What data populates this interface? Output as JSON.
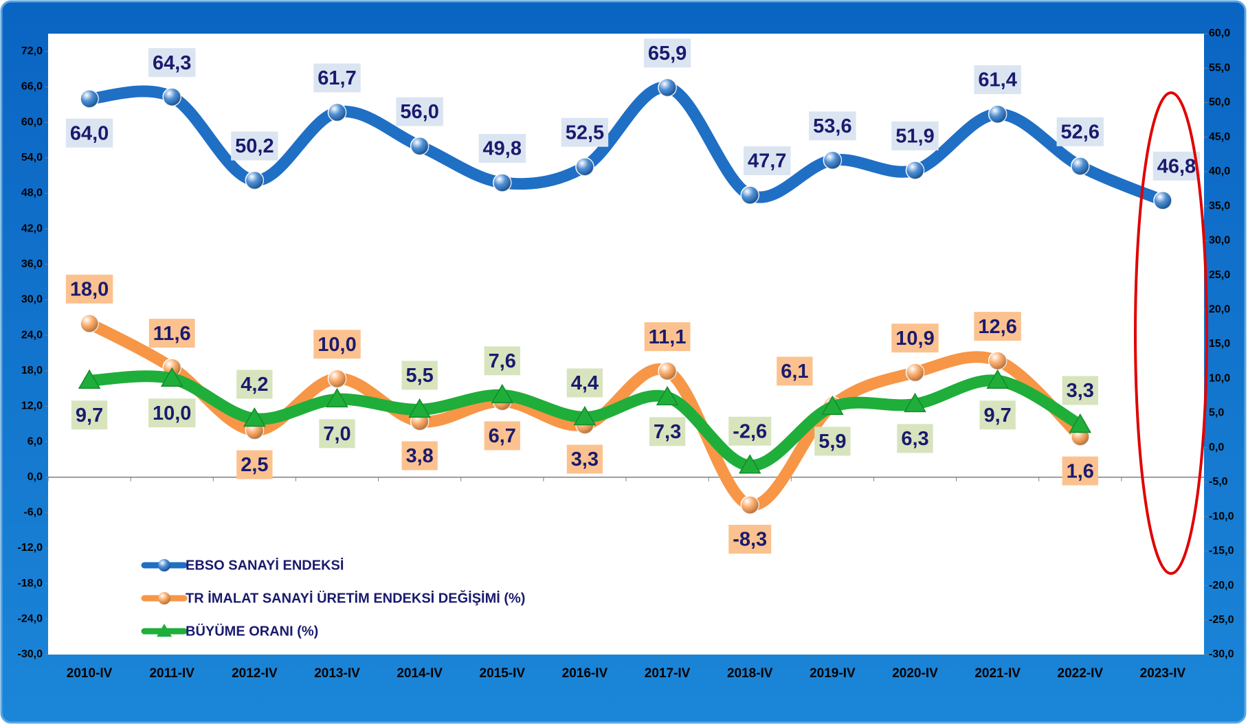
{
  "chart_data": {
    "type": "line",
    "categories": [
      "2010-IV",
      "2011-IV",
      "2012-IV",
      "2013-IV",
      "2014-IV",
      "2015-IV",
      "2016-IV",
      "2017-IV",
      "2018-IV",
      "2019-IV",
      "2020-IV",
      "2021-IV",
      "2022-IV",
      "2023-IV"
    ],
    "series": [
      {
        "name": "EBSO SANAYİ ENDEKSİ",
        "color": "#1f6fc5",
        "marker": "circle",
        "values": [
          64.0,
          64.3,
          50.2,
          61.7,
          56.0,
          49.8,
          52.5,
          65.9,
          47.7,
          53.6,
          51.9,
          61.4,
          52.6,
          46.8
        ],
        "value_labels": [
          "64,0",
          "64,3",
          "50,2",
          "61,7",
          "56,0",
          "49,8",
          "52,5",
          "65,9",
          "47,7",
          "53,6",
          "51,9",
          "61,4",
          "52,6",
          "46,8"
        ]
      },
      {
        "name": "TR İMALAT SANAYİ ÜRETİM ENDEKSİ DEĞİŞİMİ (%)",
        "color": "#f79646",
        "marker": "circle",
        "axis": "y2",
        "values": [
          18.0,
          11.6,
          2.5,
          10.0,
          3.8,
          6.7,
          3.3,
          11.1,
          -8.3,
          6.1,
          10.9,
          12.6,
          1.6,
          null
        ],
        "value_labels": [
          "18,0",
          "11,6",
          "2,5",
          "10,0",
          "3,8",
          "6,7",
          "3,3",
          "11,1",
          "-8,3",
          "6,1",
          "10,9",
          "12,6",
          "1,6",
          null
        ]
      },
      {
        "name": "BÜYÜME ORANI (%)",
        "color": "#1fae3a",
        "marker": "triangle",
        "axis": "y2",
        "values": [
          9.7,
          10.0,
          4.2,
          7.0,
          5.5,
          7.6,
          4.4,
          7.3,
          -2.6,
          5.9,
          6.3,
          9.7,
          3.3,
          null
        ],
        "value_labels": [
          "9,7",
          "10,0",
          "4,2",
          "7,0",
          "5,5",
          "7,6",
          "4,4",
          "7,3",
          "-2,6",
          "5,9",
          "6,3",
          "9,7",
          "3,3",
          null
        ]
      }
    ],
    "ylim": [
      -30,
      75
    ],
    "yticks": [
      {
        "value": -30,
        "label": "-30,0"
      },
      {
        "value": -24,
        "label": "-24,0"
      },
      {
        "value": -18,
        "label": "-18,0"
      },
      {
        "value": -12,
        "label": "-12,0"
      },
      {
        "value": -6,
        "label": "-6,0"
      },
      {
        "value": 0,
        "label": "0,0"
      },
      {
        "value": 6,
        "label": "6,0"
      },
      {
        "value": 12,
        "label": "12,0"
      },
      {
        "value": 18,
        "label": "18,0"
      },
      {
        "value": 24,
        "label": "24,0"
      },
      {
        "value": 30,
        "label": "30,0"
      },
      {
        "value": 36,
        "label": "36,0"
      },
      {
        "value": 42,
        "label": "42,0"
      },
      {
        "value": 48,
        "label": "48,0"
      },
      {
        "value": 54,
        "label": "54,0"
      },
      {
        "value": 60,
        "label": "60,0"
      },
      {
        "value": 66,
        "label": "66,0"
      },
      {
        "value": 72,
        "label": "72,0"
      }
    ],
    "y2lim": [
      -30,
      60
    ],
    "y2ticks": [
      {
        "value": -30,
        "label": "-30,0"
      },
      {
        "value": -25,
        "label": "-25,0"
      },
      {
        "value": -20,
        "label": "-20,0"
      },
      {
        "value": -15,
        "label": "-15,0"
      },
      {
        "value": -10,
        "label": "-10,0"
      },
      {
        "value": -5,
        "label": "-5,0"
      },
      {
        "value": 0,
        "label": "0,0"
      },
      {
        "value": 5,
        "label": "5,0"
      },
      {
        "value": 10,
        "label": "10,0"
      },
      {
        "value": 15,
        "label": "15,0"
      },
      {
        "value": 20,
        "label": "20,0"
      },
      {
        "value": 25,
        "label": "25,0"
      },
      {
        "value": 30,
        "label": "30,0"
      },
      {
        "value": 35,
        "label": "35,0"
      },
      {
        "value": 40,
        "label": "40,0"
      },
      {
        "value": 45,
        "label": "45,0"
      },
      {
        "value": 50,
        "label": "50,0"
      },
      {
        "value": 55,
        "label": "55,0"
      },
      {
        "value": 60,
        "label": "60,0"
      }
    ],
    "legend": "lower left"
  }
}
